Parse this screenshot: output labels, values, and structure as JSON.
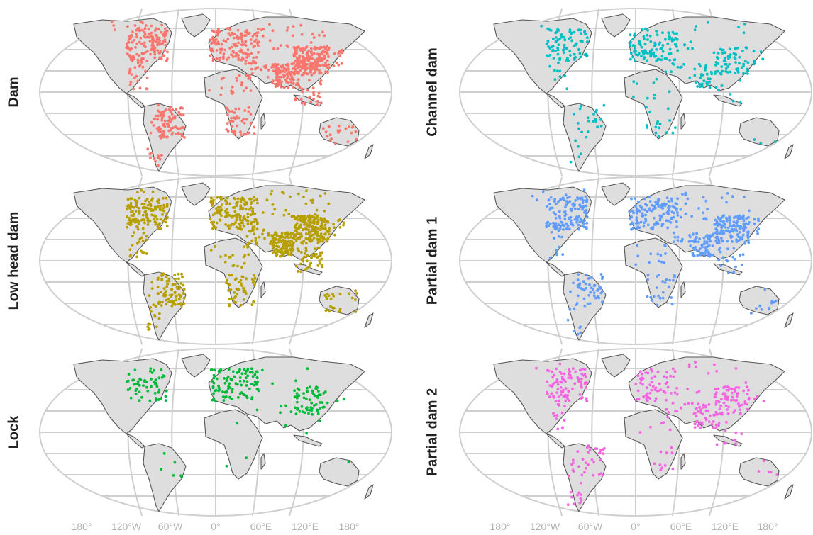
{
  "figure": {
    "colors": {
      "dam": "#f8766d",
      "channel_dam": "#00bfc4",
      "low_head_dam": "#b79f00",
      "partial_dam_1": "#619cff",
      "lock": "#00ba38",
      "partial_dam_2": "#f564e3",
      "land": "#dedede",
      "coast": "#555555",
      "graticule": "#cfcfcf"
    },
    "panels": [
      {
        "id": "dam",
        "label": "Dam",
        "color": "#f8766d",
        "density": "very high"
      },
      {
        "id": "channel-dam",
        "label": "Channel dam",
        "color": "#00bfc4",
        "density": "medium"
      },
      {
        "id": "low-head-dam",
        "label": "Low head dam",
        "color": "#b79f00",
        "density": "very high"
      },
      {
        "id": "partial-dam-1",
        "label": "Partial dam 1",
        "color": "#619cff",
        "density": "high"
      },
      {
        "id": "lock",
        "label": "Lock",
        "color": "#00ba38",
        "density": "low"
      },
      {
        "id": "partial-dam-2",
        "label": "Partial dam 2",
        "color": "#f564e3",
        "density": "medium"
      }
    ],
    "longitude_labels": [
      "180°",
      "120°W",
      "60°W",
      "0°",
      "60°E",
      "120°E",
      "180°"
    ],
    "projection": "pseudocylindrical world map (Robinson-like)",
    "graticule": "on"
  }
}
